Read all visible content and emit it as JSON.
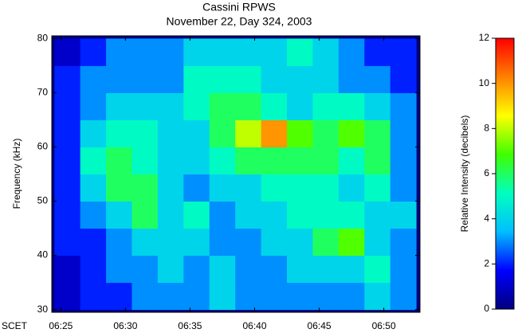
{
  "chart_data": {
    "type": "heatmap",
    "title": "Cassini RPWS",
    "subtitle": "November 22, Day 324, 2003",
    "x_label": "SCET",
    "y_label": "Frequency (kHz)",
    "colorbar_label": "Relative Intensity (decibels)",
    "xlim": [
      24.3,
      52.8
    ],
    "xticks": [
      {
        "value": 25,
        "label": "06:25"
      },
      {
        "value": 30,
        "label": "06:30"
      },
      {
        "value": 35,
        "label": "06:35"
      },
      {
        "value": 40,
        "label": "06:40"
      },
      {
        "value": 45,
        "label": "06:45"
      },
      {
        "value": 50,
        "label": "06:50"
      }
    ],
    "ylim": [
      29.5,
      80.5
    ],
    "yticks": [
      30,
      40,
      50,
      60,
      70,
      80
    ],
    "xbins": [
      24.5,
      26.5,
      28.5,
      30.5,
      32.5,
      34.5,
      36.5,
      38.5,
      40.5,
      42.5,
      44.5,
      46.5,
      48.5,
      50.5,
      52.5
    ],
    "ybins": [
      30,
      35,
      40,
      45,
      50,
      55,
      60,
      65,
      70,
      75,
      80
    ],
    "z": [
      [
        1,
        2,
        2,
        3,
        3,
        3,
        4,
        3,
        3,
        3,
        3,
        3,
        4,
        3
      ],
      [
        1,
        2,
        3,
        3,
        4,
        3,
        4,
        3,
        3,
        4,
        4,
        4,
        5,
        3
      ],
      [
        2,
        2,
        3,
        4,
        4,
        4,
        3,
        3,
        4,
        4,
        6,
        7,
        4,
        3
      ],
      [
        2,
        3,
        4,
        6,
        4,
        5,
        3,
        4,
        4,
        5,
        5,
        5,
        4,
        4
      ],
      [
        2,
        4,
        6,
        6,
        4,
        3,
        4,
        4,
        5,
        5,
        5,
        4,
        5,
        3
      ],
      [
        2,
        5,
        6,
        5,
        4,
        4,
        5,
        6,
        6,
        6,
        6,
        5,
        6,
        3
      ],
      [
        2,
        4,
        5,
        5,
        4,
        4,
        6,
        8,
        10,
        7,
        6,
        7,
        6,
        3
      ],
      [
        2,
        3,
        4,
        4,
        4,
        5,
        6,
        6,
        5,
        4,
        5,
        5,
        4,
        3
      ],
      [
        2,
        3,
        3,
        3,
        3,
        5,
        5,
        5,
        4,
        4,
        4,
        3,
        3,
        2
      ],
      [
        1,
        2,
        3,
        3,
        3,
        4,
        4,
        4,
        4,
        5,
        4,
        3,
        2,
        2
      ]
    ],
    "clim": [
      0,
      12
    ],
    "cticks": [
      0,
      2,
      4,
      6,
      8,
      10,
      12
    ],
    "colormap": [
      "#00007f",
      "#0000ff",
      "#00bfff",
      "#00ffbf",
      "#40ff00",
      "#ffff00",
      "#ff8000",
      "#ff0000"
    ]
  }
}
